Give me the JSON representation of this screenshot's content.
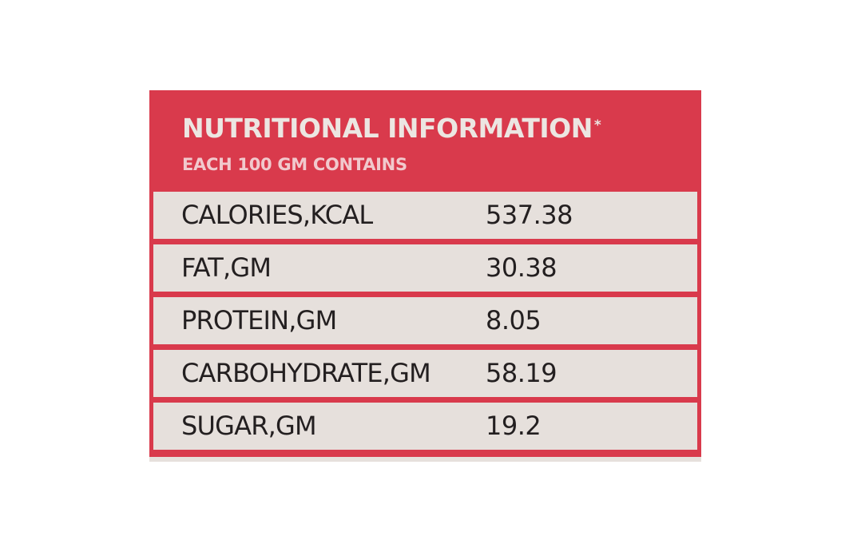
{
  "label": {
    "title": "NUTRITIONAL INFORMATION",
    "title_mark": "*",
    "subtitle": "EACH 100 GM CONTAINS",
    "rows": [
      {
        "name": "CALORIES,KCAL",
        "value": "537.38"
      },
      {
        "name": "FAT,GM",
        "value": "30.38"
      },
      {
        "name": "PROTEIN,GM",
        "value": "8.05"
      },
      {
        "name": "CARBOHYDRATE,GM",
        "value": "58.19"
      },
      {
        "name": "SUGAR,GM",
        "value": "19.2"
      }
    ],
    "colors": {
      "panel": "#d93a4c",
      "row_background": "#e6e0dc",
      "title_text": "#ece6e2",
      "subtitle_text": "#f1c9cd",
      "row_text": "#231f20"
    }
  }
}
